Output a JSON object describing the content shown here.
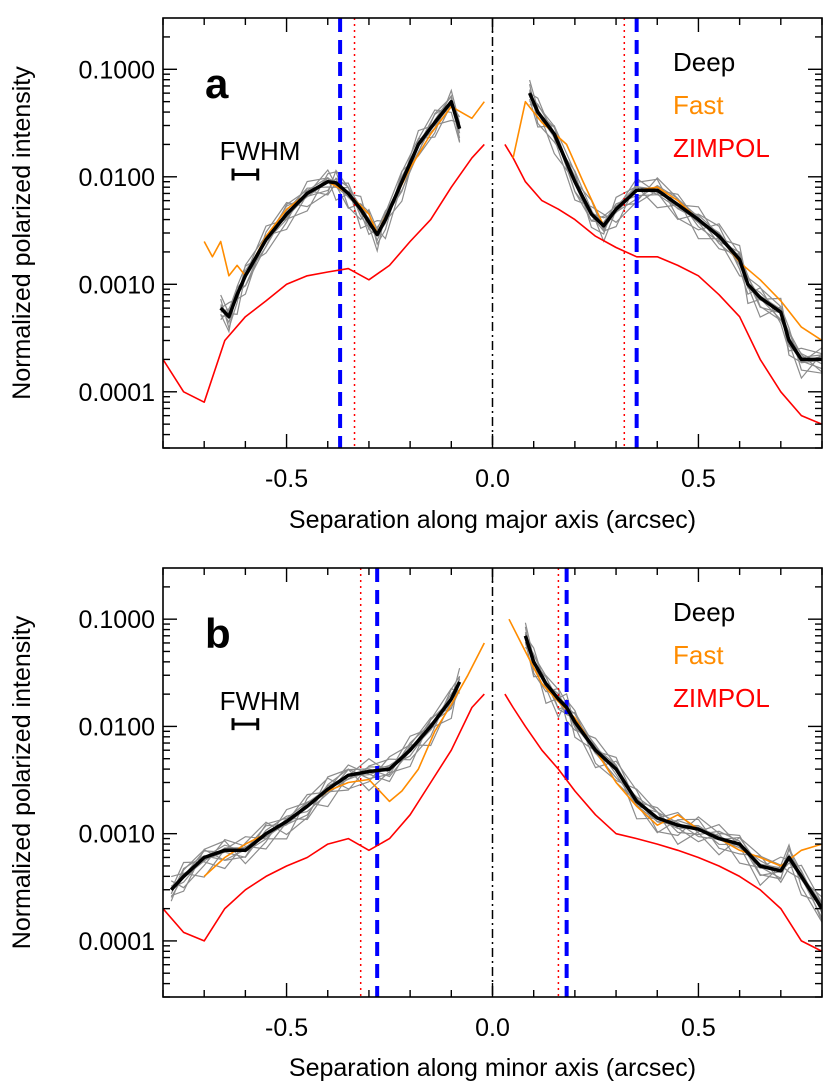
{
  "chart_data": [
    {
      "type": "line",
      "panel_label": "a",
      "xlabel": "Separation along major axis (arcsec)",
      "ylabel": "Normalized polarized intensity",
      "xlim": [
        -0.8,
        0.8
      ],
      "ylim": [
        3e-05,
        0.3
      ],
      "yscale": "log",
      "x_ticks": [
        -0.5,
        0.0,
        0.5
      ],
      "x_tick_labels": [
        "-0.5",
        "0.0",
        "0.5"
      ],
      "y_ticks": [
        0.0001,
        0.001,
        0.01,
        0.1
      ],
      "y_tick_labels": [
        "0.0001",
        "0.0010",
        "0.0100",
        "0.1000"
      ],
      "legend": [
        {
          "label": "Deep",
          "color": "#000000"
        },
        {
          "label": "Fast",
          "color": "#ff8c00"
        },
        {
          "label": "ZIMPOL",
          "color": "#ff0000"
        }
      ],
      "fwhm_label": "FWHM",
      "fwhm_bar": {
        "center": -0.6,
        "width": 0.06,
        "y": 0.0105
      },
      "vlines": [
        {
          "x": 0.0,
          "style": "dashdot",
          "color": "#000000"
        },
        {
          "x": -0.37,
          "style": "dashed",
          "color": "#0000ff"
        },
        {
          "x": 0.35,
          "style": "dashed",
          "color": "#0000ff"
        },
        {
          "x": -0.335,
          "style": "dotted",
          "color": "#ff0000"
        },
        {
          "x": 0.32,
          "style": "dotted",
          "color": "#ff0000"
        }
      ],
      "series": [
        {
          "name": "Deep",
          "color": "#000000",
          "left": {
            "x": [
              -0.66,
              -0.64,
              -0.62,
              -0.6,
              -0.55,
              -0.5,
              -0.45,
              -0.4,
              -0.38,
              -0.35,
              -0.32,
              -0.3,
              -0.28,
              -0.26,
              -0.22,
              -0.18,
              -0.14,
              -0.1,
              -0.08
            ],
            "y": [
              0.0006,
              0.0005,
              0.0008,
              0.0012,
              0.0026,
              0.0045,
              0.007,
              0.009,
              0.0088,
              0.007,
              0.005,
              0.0038,
              0.0029,
              0.004,
              0.009,
              0.02,
              0.032,
              0.05,
              0.028
            ]
          },
          "right": {
            "x": [
              0.09,
              0.11,
              0.15,
              0.2,
              0.24,
              0.27,
              0.3,
              0.35,
              0.4,
              0.45,
              0.5,
              0.55,
              0.6,
              0.62,
              0.65,
              0.7,
              0.72,
              0.75,
              0.8
            ],
            "y": [
              0.06,
              0.04,
              0.025,
              0.009,
              0.0045,
              0.0035,
              0.005,
              0.0075,
              0.0075,
              0.0055,
              0.004,
              0.0028,
              0.0017,
              0.001,
              0.00075,
              0.00055,
              0.0003,
              0.0002,
              0.0002
            ]
          }
        },
        {
          "name": "Fast",
          "color": "#ff8c00",
          "left": {
            "x": [
              -0.7,
              -0.68,
              -0.66,
              -0.64,
              -0.62,
              -0.6,
              -0.55,
              -0.5,
              -0.45,
              -0.4,
              -0.35,
              -0.3,
              -0.28,
              -0.24,
              -0.2,
              -0.15,
              -0.1,
              -0.05,
              -0.02
            ],
            "y": [
              0.0025,
              0.0018,
              0.0025,
              0.0012,
              0.0015,
              0.0012,
              0.0028,
              0.005,
              0.007,
              0.009,
              0.007,
              0.0045,
              0.003,
              0.006,
              0.012,
              0.025,
              0.045,
              0.035,
              0.05
            ]
          },
          "right": {
            "x": [
              0.05,
              0.08,
              0.12,
              0.18,
              0.22,
              0.27,
              0.3,
              0.35,
              0.4,
              0.45,
              0.5,
              0.55,
              0.6,
              0.65,
              0.7,
              0.75,
              0.8
            ],
            "y": [
              0.015,
              0.05,
              0.032,
              0.02,
              0.009,
              0.0035,
              0.005,
              0.0075,
              0.008,
              0.006,
              0.004,
              0.0028,
              0.0016,
              0.0011,
              0.0007,
              0.0004,
              0.0003
            ]
          }
        },
        {
          "name": "ZIMPOL",
          "color": "#ff0000",
          "left": {
            "x": [
              -0.8,
              -0.75,
              -0.7,
              -0.65,
              -0.6,
              -0.55,
              -0.5,
              -0.45,
              -0.4,
              -0.35,
              -0.3,
              -0.25,
              -0.2,
              -0.15,
              -0.1,
              -0.05,
              -0.02
            ],
            "y": [
              0.0002,
              0.0001,
              8e-05,
              0.0003,
              0.0005,
              0.0007,
              0.001,
              0.0012,
              0.0013,
              0.0014,
              0.0011,
              0.0015,
              0.0025,
              0.004,
              0.008,
              0.015,
              0.02
            ]
          },
          "right": {
            "x": [
              0.03,
              0.05,
              0.08,
              0.12,
              0.16,
              0.2,
              0.25,
              0.3,
              0.35,
              0.4,
              0.45,
              0.5,
              0.55,
              0.6,
              0.65,
              0.7,
              0.75,
              0.8
            ],
            "y": [
              0.02,
              0.015,
              0.009,
              0.006,
              0.005,
              0.004,
              0.0028,
              0.0022,
              0.0018,
              0.0018,
              0.0015,
              0.0012,
              0.0008,
              0.0005,
              0.0002,
              0.0001,
              6e-05,
              5e-05
            ]
          }
        }
      ]
    },
    {
      "type": "line",
      "panel_label": "b",
      "xlabel": "Separation along minor axis (arcsec)",
      "ylabel": "Normalized polarized intensity",
      "xlim": [
        -0.8,
        0.8
      ],
      "ylim": [
        3e-05,
        0.3
      ],
      "yscale": "log",
      "x_ticks": [
        -0.5,
        0.0,
        0.5
      ],
      "x_tick_labels": [
        "-0.5",
        "0.0",
        "0.5"
      ],
      "y_ticks": [
        0.0001,
        0.001,
        0.01,
        0.1
      ],
      "y_tick_labels": [
        "0.0001",
        "0.0010",
        "0.0100",
        "0.1000"
      ],
      "legend": [
        {
          "label": "Deep",
          "color": "#000000"
        },
        {
          "label": "Fast",
          "color": "#ff8c00"
        },
        {
          "label": "ZIMPOL",
          "color": "#ff0000"
        }
      ],
      "fwhm_label": "FWHM",
      "fwhm_bar": {
        "center": -0.6,
        "width": 0.06,
        "y": 0.0105
      },
      "vlines": [
        {
          "x": 0.0,
          "style": "dashdot",
          "color": "#000000"
        },
        {
          "x": -0.28,
          "style": "dashed",
          "color": "#0000ff"
        },
        {
          "x": 0.18,
          "style": "dashed",
          "color": "#0000ff"
        },
        {
          "x": -0.32,
          "style": "dotted",
          "color": "#ff0000"
        },
        {
          "x": 0.16,
          "style": "dotted",
          "color": "#ff0000"
        }
      ],
      "series": [
        {
          "name": "Deep",
          "color": "#000000",
          "left": {
            "x": [
              -0.78,
              -0.75,
              -0.7,
              -0.65,
              -0.6,
              -0.55,
              -0.5,
              -0.45,
              -0.4,
              -0.35,
              -0.3,
              -0.25,
              -0.2,
              -0.15,
              -0.1,
              -0.08
            ],
            "y": [
              0.0003,
              0.0004,
              0.0006,
              0.0007,
              0.0007,
              0.001,
              0.0013,
              0.0018,
              0.0026,
              0.0035,
              0.0038,
              0.004,
              0.006,
              0.01,
              0.018,
              0.026
            ]
          },
          "right": {
            "x": [
              0.08,
              0.1,
              0.13,
              0.16,
              0.18,
              0.2,
              0.25,
              0.3,
              0.35,
              0.4,
              0.45,
              0.5,
              0.55,
              0.6,
              0.65,
              0.7,
              0.72,
              0.75,
              0.8
            ],
            "y": [
              0.07,
              0.04,
              0.025,
              0.018,
              0.015,
              0.011,
              0.006,
              0.004,
              0.002,
              0.0014,
              0.0012,
              0.0011,
              0.0009,
              0.0008,
              0.0005,
              0.00045,
              0.0006,
              0.0004,
              0.0002
            ]
          }
        },
        {
          "name": "Fast",
          "color": "#ff8c00",
          "left": {
            "x": [
              -0.7,
              -0.65,
              -0.6,
              -0.55,
              -0.5,
              -0.45,
              -0.4,
              -0.35,
              -0.3,
              -0.25,
              -0.22,
              -0.18,
              -0.14,
              -0.1,
              -0.06,
              -0.02
            ],
            "y": [
              0.0004,
              0.0006,
              0.0008,
              0.001,
              0.0013,
              0.0018,
              0.0025,
              0.003,
              0.0032,
              0.002,
              0.0025,
              0.004,
              0.009,
              0.016,
              0.03,
              0.06
            ]
          },
          "right": {
            "x": [
              0.04,
              0.08,
              0.12,
              0.16,
              0.2,
              0.25,
              0.3,
              0.35,
              0.4,
              0.45,
              0.5,
              0.55,
              0.6,
              0.65,
              0.7,
              0.75,
              0.8
            ],
            "y": [
              0.1,
              0.05,
              0.025,
              0.017,
              0.012,
              0.006,
              0.003,
              0.0018,
              0.0012,
              0.0015,
              0.0011,
              0.0009,
              0.0007,
              0.0006,
              0.0005,
              0.0007,
              0.0008
            ]
          }
        },
        {
          "name": "ZIMPOL",
          "color": "#ff0000",
          "left": {
            "x": [
              -0.8,
              -0.75,
              -0.7,
              -0.65,
              -0.6,
              -0.55,
              -0.5,
              -0.45,
              -0.4,
              -0.35,
              -0.3,
              -0.25,
              -0.2,
              -0.15,
              -0.1,
              -0.05,
              -0.02
            ],
            "y": [
              0.0002,
              0.00012,
              0.0001,
              0.0002,
              0.0003,
              0.0004,
              0.0005,
              0.0006,
              0.0008,
              0.0009,
              0.0007,
              0.0009,
              0.0015,
              0.003,
              0.006,
              0.015,
              0.02
            ]
          },
          "right": {
            "x": [
              0.03,
              0.05,
              0.08,
              0.12,
              0.16,
              0.2,
              0.25,
              0.3,
              0.35,
              0.4,
              0.45,
              0.5,
              0.55,
              0.6,
              0.65,
              0.7,
              0.75,
              0.8
            ],
            "y": [
              0.02,
              0.015,
              0.01,
              0.006,
              0.004,
              0.0025,
              0.0015,
              0.001,
              0.0009,
              0.0008,
              0.0007,
              0.0006,
              0.0005,
              0.0004,
              0.0003,
              0.0002,
              0.0001,
              8e-05
            ]
          }
        }
      ]
    }
  ]
}
